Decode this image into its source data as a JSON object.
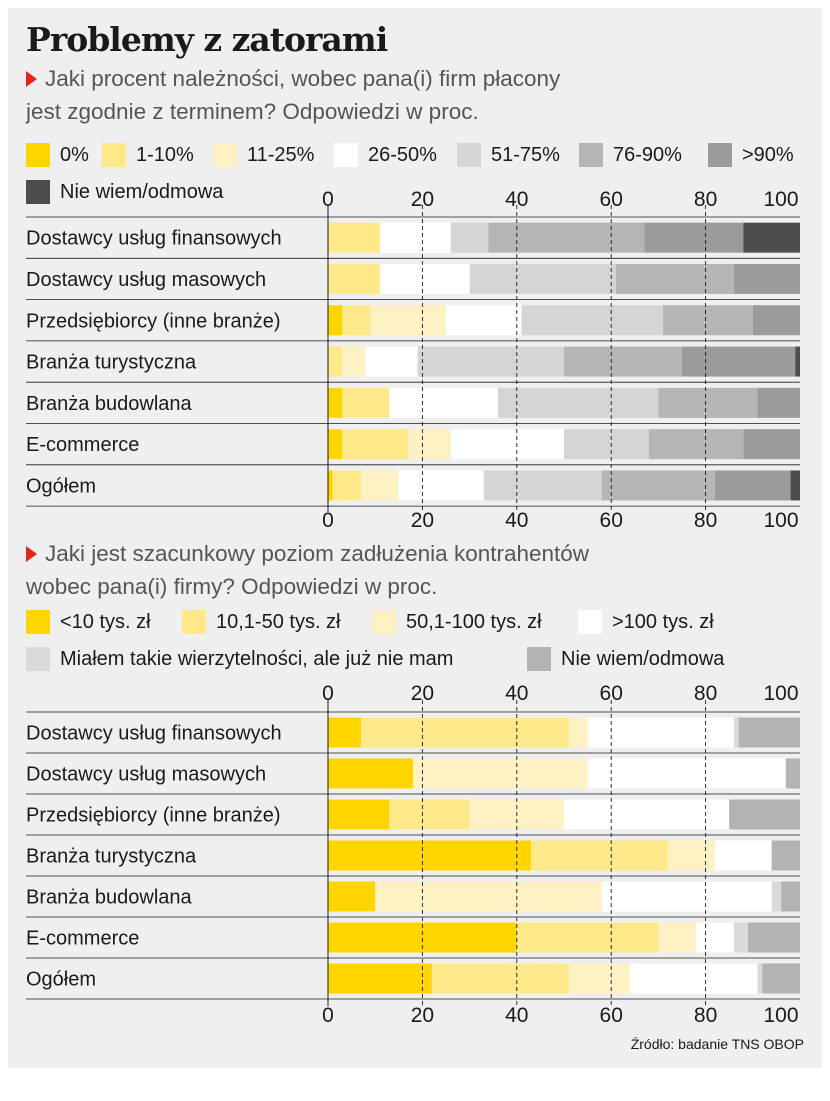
{
  "title": "Problemy z zatorami",
  "source": "Źródło: badanie TNS OBOP",
  "chart_data": [
    {
      "type": "bar",
      "orientation": "horizontal",
      "stacked": true,
      "question": [
        "Jaki procent należności, wobec pana(i) firm płacony",
        "jest zgodnie z terminem? Odpowiedzi w proc."
      ],
      "categories": [
        "Dostawcy usług finansowych",
        "Dostawcy usług masowych",
        "Przedsiębiorcy (inne branże)",
        "Branża turystyczna",
        "Branża budowlana",
        "E-commerce",
        "Ogółem"
      ],
      "xlim": [
        0,
        100
      ],
      "xticks": [
        "0",
        "20",
        "40",
        "60",
        "80",
        "100"
      ],
      "legend_placement": "top",
      "series": [
        {
          "name": "0%",
          "color": "#ffd500",
          "values": [
            0,
            0,
            3,
            0,
            3,
            3,
            1
          ]
        },
        {
          "name": "1-10%",
          "color": "#fde88a",
          "values": [
            11,
            11,
            6,
            3,
            10,
            14,
            6
          ]
        },
        {
          "name": "11-25%",
          "color": "#fef1c4",
          "values": [
            0,
            0,
            16,
            5,
            0,
            9,
            8
          ]
        },
        {
          "name": "26-50%",
          "color": "#ffffff",
          "values": [
            15,
            19,
            16,
            11,
            23,
            24,
            18
          ]
        },
        {
          "name": "51-75%",
          "color": "#d5d5d5",
          "values": [
            8,
            31,
            30,
            31,
            34,
            18,
            25
          ]
        },
        {
          "name": "76-90%",
          "color": "#b5b5b5",
          "values": [
            33,
            25,
            19,
            25,
            21,
            20,
            24
          ]
        },
        {
          "name": ">90%",
          "color": "#9b9b9b",
          "values": [
            21,
            14,
            10,
            24,
            9,
            12,
            16
          ]
        },
        {
          "name": "Nie wiem/odmowa",
          "color": "#4d4d4d",
          "values": [
            12,
            0,
            0,
            1,
            0,
            0,
            2
          ]
        }
      ]
    },
    {
      "type": "bar",
      "orientation": "horizontal",
      "stacked": true,
      "question": [
        "Jaki jest szacunkowy poziom zadłużenia kontrahentów",
        "wobec pana(i) firmy? Odpowiedzi w proc."
      ],
      "categories": [
        "Dostawcy usług finansowych",
        "Dostawcy usług masowych",
        "Przedsiębiorcy (inne branże)",
        "Branża turystyczna",
        "Branża budowlana",
        "E-commerce",
        "Ogółem"
      ],
      "xlim": [
        0,
        100
      ],
      "xticks": [
        "0",
        "20",
        "40",
        "60",
        "80",
        "100"
      ],
      "legend_placement": "top",
      "series": [
        {
          "name": "<10 tys. zł",
          "color": "#ffd500",
          "values": [
            7,
            18,
            13,
            43,
            10,
            40,
            22
          ]
        },
        {
          "name": "10,1-50 tys. zł",
          "color": "#fde88a",
          "values": [
            44,
            0,
            17,
            29,
            0,
            30,
            29
          ]
        },
        {
          "name": "50,1-100 tys. zł",
          "color": "#fef1c4",
          "values": [
            4,
            37,
            20,
            10,
            48,
            8,
            13
          ]
        },
        {
          "name": ">100 tys. zł",
          "color": "#ffffff",
          "values": [
            31,
            42,
            35,
            12,
            36,
            8,
            27
          ]
        },
        {
          "name": "Miałem takie wierzytelności, ale już nie mam",
          "color": "#dadada",
          "values": [
            1,
            0,
            0,
            0,
            2,
            3,
            1
          ]
        },
        {
          "name": "Nie wiem/odmowa",
          "color": "#b3b3b3",
          "values": [
            13,
            3,
            15,
            6,
            4,
            11,
            8
          ]
        }
      ]
    }
  ]
}
